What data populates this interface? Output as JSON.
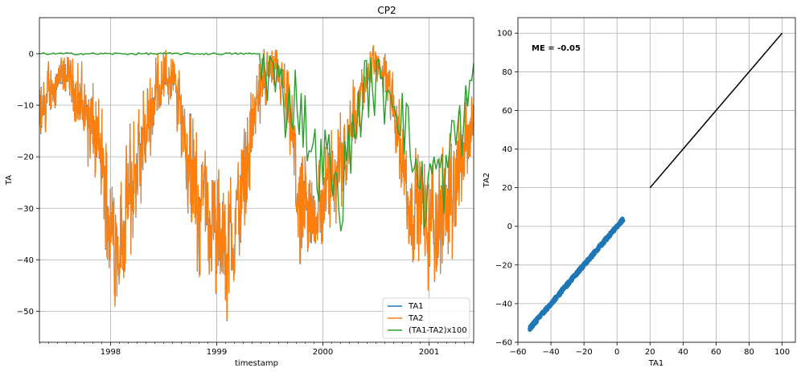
{
  "colors": {
    "TA1": "#1f77b4",
    "TA2": "#ff7f0e",
    "diff": "#2ca02c",
    "grid": "#b0b0b0",
    "identity": "#000000"
  },
  "chart_data": [
    {
      "type": "line",
      "title": "CP2",
      "xlabel": "timestamp",
      "ylabel": "TA",
      "x_range": [
        "1997-05-01",
        "2001-06-01"
      ],
      "xlim": [
        1997.33,
        2001.42
      ],
      "ylim": [
        -56,
        7
      ],
      "x_ticks": [
        "1998",
        "1999",
        "2000",
        "2001"
      ],
      "y_ticks": [
        0,
        -10,
        -20,
        -30,
        -40,
        -50
      ],
      "grid": true,
      "legend_position": "lower right",
      "series": [
        {
          "name": "TA1",
          "color": "#1f77b4",
          "summary": "daily-ish air temperature, seasonal minima near -52, maxima near 3"
        },
        {
          "name": "TA2",
          "color": "#ff7f0e",
          "summary": "nearly identical to TA1, drawn on top"
        },
        {
          "name": "(TA1-TA2)x100",
          "color": "#2ca02c",
          "summary": "0 until mid-1999, then fluctuates between about -36 and 0"
        }
      ],
      "envelope_TA": {
        "x": [
          1997.33,
          1997.45,
          1997.6,
          1997.75,
          1997.9,
          1998.0,
          1998.1,
          1998.2,
          1998.3,
          1998.4,
          1998.5,
          1998.6,
          1998.7,
          1998.8,
          1998.9,
          1999.0,
          1999.1,
          1999.2,
          1999.3,
          1999.4,
          1999.5,
          1999.6,
          1999.7,
          1999.8,
          1999.9,
          2000.0,
          2000.1,
          2000.2,
          2000.3,
          2000.4,
          2000.5,
          2000.6,
          2000.7,
          2000.8,
          2000.9,
          2001.0,
          2001.1,
          2001.2,
          2001.3,
          2001.42
        ],
        "lo": [
          -22,
          -12,
          -8,
          -20,
          -30,
          -48,
          -50,
          -40,
          -30,
          -18,
          -10,
          -12,
          -25,
          -45,
          -40,
          -50,
          -52,
          -45,
          -28,
          -15,
          -8,
          -10,
          -25,
          -48,
          -42,
          -40,
          -35,
          -28,
          -20,
          -10,
          -6,
          -10,
          -22,
          -42,
          -40,
          -47,
          -45,
          -42,
          -30,
          -20
        ],
        "hi": [
          -5,
          0,
          0,
          -2,
          -8,
          -20,
          -22,
          -12,
          -8,
          0,
          3,
          0,
          -5,
          -15,
          -18,
          -22,
          -25,
          -18,
          -8,
          0,
          2,
          0,
          -5,
          -20,
          -20,
          -18,
          -12,
          -8,
          -4,
          0,
          2,
          0,
          -5,
          -15,
          -18,
          -20,
          -18,
          -15,
          -8,
          -5
        ]
      },
      "diff_series": {
        "x": [
          1997.33,
          1999.35,
          1999.45,
          1999.55,
          1999.65,
          1999.75,
          1999.85,
          1999.95,
          2000.05,
          2000.15,
          2000.25,
          2000.35,
          2000.45,
          2000.55,
          2000.65,
          2000.75,
          2000.85,
          2000.95,
          2001.05,
          2001.15,
          2001.25,
          2001.35,
          2001.42
        ],
        "y": [
          0,
          0,
          -2,
          -5,
          -10,
          -8,
          -15,
          -22,
          -20,
          -30,
          -18,
          -10,
          -5,
          -8,
          -6,
          -12,
          -20,
          -28,
          -22,
          -25,
          -15,
          -12,
          0
        ]
      }
    },
    {
      "type": "scatter",
      "title": "",
      "xlabel": "TA1",
      "ylabel": "TA2",
      "xlim": [
        -60,
        108
      ],
      "ylim": [
        -60,
        108
      ],
      "x_ticks": [
        -60,
        -40,
        -20,
        0,
        20,
        40,
        60,
        80,
        100
      ],
      "y_ticks": [
        100,
        80,
        60,
        40,
        20,
        0,
        -20,
        -40,
        -60
      ],
      "grid": true,
      "annotation": "ME = -0.05",
      "points_range": {
        "x": [
          -53,
          4
        ],
        "y": [
          -53,
          4
        ]
      },
      "identity_line": {
        "x": [
          20,
          100
        ],
        "y": [
          20,
          100
        ]
      }
    }
  ]
}
